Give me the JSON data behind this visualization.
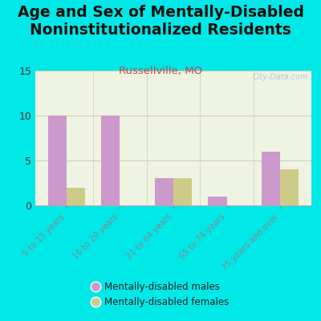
{
  "title": "Age and Sex of Mentally-Disabled\nNoninstitutionalized Residents",
  "subtitle": "Russellville, MO",
  "categories": [
    "5 to 15 years",
    "16 to 20 years",
    "21 to 64 years",
    "65 to 74 years",
    "75 years and over"
  ],
  "males": [
    10,
    10,
    3,
    1,
    6
  ],
  "females": [
    2,
    0,
    3,
    0,
    4
  ],
  "male_color": "#cc99cc",
  "female_color": "#cccc88",
  "ylim": [
    0,
    15
  ],
  "yticks": [
    0,
    5,
    10,
    15
  ],
  "background_outer": "#00e8e8",
  "background_plot": "#eef3e2",
  "bar_width": 0.35,
  "title_fontsize": 13.5,
  "subtitle_fontsize": 9.5,
  "subtitle_color": "#cc4444",
  "watermark": "City-Data.com",
  "legend_male": "Mentally-disabled males",
  "legend_female": "Mentally-disabled females",
  "tick_label_color": "#557755",
  "ytick_color": "#333333"
}
